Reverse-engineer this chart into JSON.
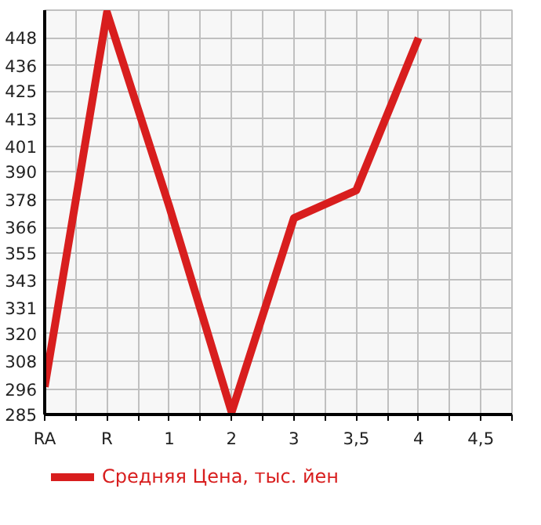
{
  "chart_data": {
    "type": "line",
    "categories": [
      "RA",
      "R",
      "1",
      "2",
      "3",
      "3,5",
      "4",
      "4,5"
    ],
    "series": [
      {
        "name": "Средняя Цена, тыс. йен",
        "color": "#d81e1e",
        "values": [
          297,
          459,
          375,
          286,
          370,
          382,
          448,
          null
        ]
      }
    ],
    "ylim": [
      285,
      460
    ],
    "yticks": [
      285,
      296,
      308,
      320,
      331,
      343,
      355,
      366,
      378,
      390,
      401,
      413,
      425,
      436,
      448
    ],
    "grid": true,
    "legend": "bottom",
    "marker": "none",
    "line_style": "solid"
  }
}
